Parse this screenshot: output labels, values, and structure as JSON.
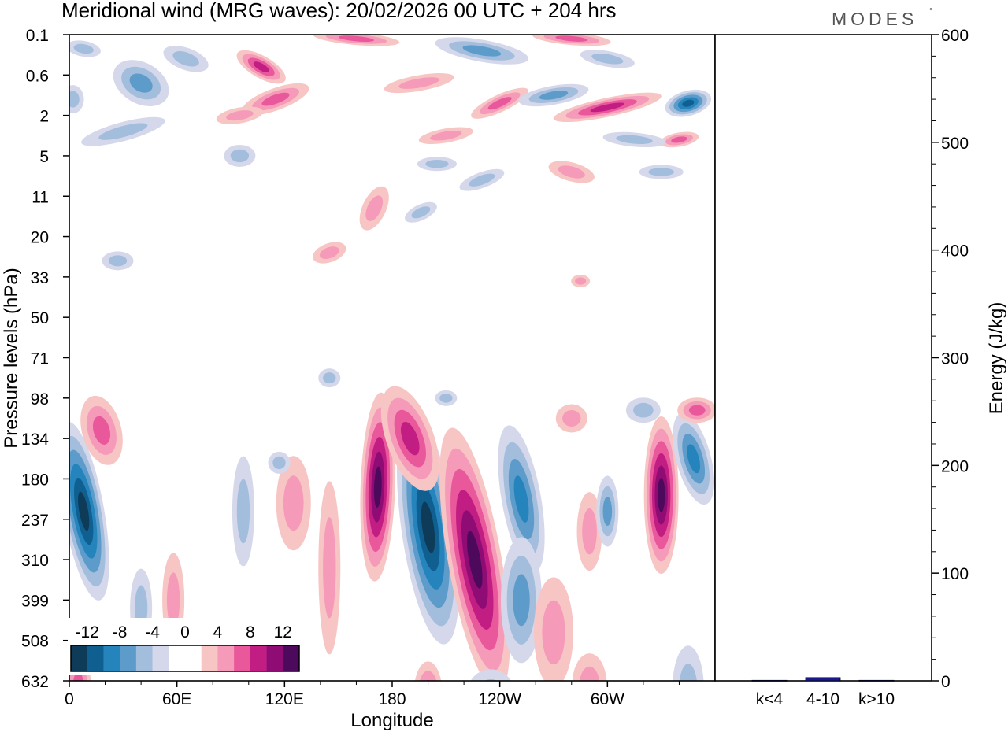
{
  "chart_data": {
    "type": "heatmap",
    "title": "Meridional wind (MRG waves):  20/02/2026  00 UTC  + 204 hrs",
    "brand": "MODES",
    "brand_mark": "°",
    "xlabel": "Longitude",
    "ylabel": "Pressure levels (hPa)",
    "x_ticks": [
      "0",
      "60E",
      "120E",
      "180",
      "120W",
      "60W"
    ],
    "x_tick_values": [
      0,
      60,
      120,
      180,
      240,
      300
    ],
    "xlim": [
      0,
      360
    ],
    "y_ticks": [
      "0.1",
      "0.6",
      "2",
      "5",
      "11",
      "20",
      "33",
      "50",
      "71",
      "98",
      "134",
      "180",
      "237",
      "310",
      "399",
      "508",
      "632"
    ],
    "colorbar": {
      "levels": [
        -12,
        -10,
        -8,
        -6,
        -4,
        -2,
        0,
        2,
        4,
        6,
        8,
        10,
        12
      ],
      "tick_labels": [
        "-12",
        "-8",
        "-4",
        "0",
        "4",
        "8",
        "12"
      ],
      "colors": [
        "#0d3b58",
        "#0f5f91",
        "#2684bd",
        "#5d9cca",
        "#a3bddd",
        "#d5d8ea",
        "#ffffff",
        "#ffffff",
        "#f8c5c5",
        "#f59ab8",
        "#e8589a",
        "#c11d83",
        "#8e0c73",
        "#4d0a5c"
      ]
    },
    "features": [
      {
        "type": "positive",
        "lon": 172,
        "level_index": 11.2,
        "peak": 14
      },
      {
        "type": "negative",
        "lon": 200,
        "level_index": 12.5,
        "peak": -14
      },
      {
        "type": "positive",
        "lon": 226,
        "level_index": 13.5,
        "peak": 14
      },
      {
        "type": "negative",
        "lon": 255,
        "level_index": 11.5,
        "peak": -9
      },
      {
        "type": "positive",
        "lon": 330,
        "level_index": 11.5,
        "peak": 14
      },
      {
        "type": "negative",
        "lon": 3,
        "level_index": 11.5,
        "peak": -12
      }
    ],
    "energy_panel": {
      "type": "bar",
      "ylabel": "Energy (J/kg)",
      "ylim": [
        0,
        600
      ],
      "y_ticks": [
        "0",
        "100",
        "200",
        "300",
        "400",
        "500",
        "600"
      ],
      "y_tick_values": [
        0,
        100,
        200,
        300,
        400,
        500,
        600
      ],
      "categories": [
        "k<4",
        "4-10",
        "k>10"
      ],
      "values": [
        0.5,
        3,
        0.5
      ],
      "bar_color": "#1a1a8c"
    }
  }
}
